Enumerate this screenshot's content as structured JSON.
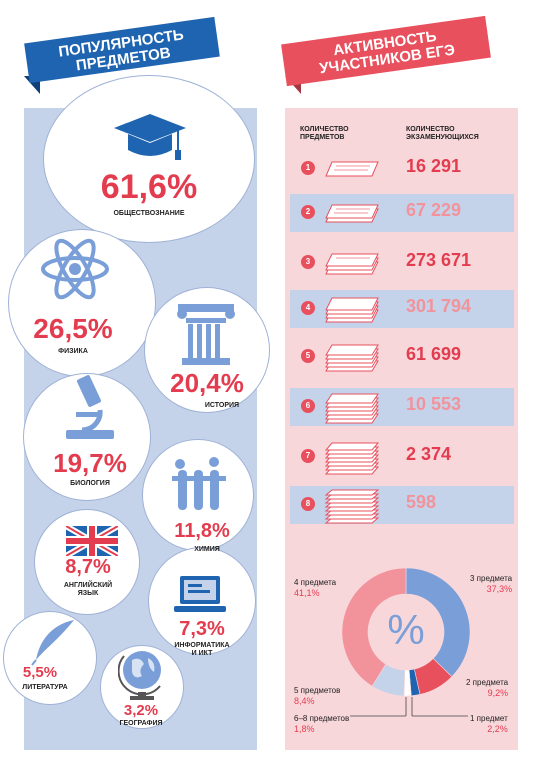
{
  "left_banner": {
    "line1": "ПОПУЛЯРНОСТЬ",
    "line2": "ПРЕДМЕТОВ"
  },
  "right_banner": {
    "line1": "АКТИВНОСТЬ",
    "line2": "УЧАСТНИКОВ ЕГЭ"
  },
  "subjects": [
    {
      "percent": "61,6%",
      "label": "ОБЩЕСТВОЗНАНИЕ",
      "icon": "graduation-cap-icon"
    },
    {
      "percent": "26,5%",
      "label": "ФИЗИКА",
      "icon": "atom-icon"
    },
    {
      "percent": "20,4%",
      "label": "ИСТОРИЯ",
      "icon": "column-icon"
    },
    {
      "percent": "19,7%",
      "label": "БИОЛОГИЯ",
      "icon": "microscope-icon"
    },
    {
      "percent": "11,8%",
      "label": "ХИМИЯ",
      "icon": "test-tubes-icon"
    },
    {
      "percent": "8,7%",
      "label_line1": "АНГЛИЙСКИЙ",
      "label_line2": "ЯЗЫК",
      "icon": "uk-flag-icon"
    },
    {
      "percent": "7,3%",
      "label_line1": "ИНФОРМАТИКА",
      "label_line2": "И ИКТ",
      "icon": "laptop-icon"
    },
    {
      "percent": "5,5%",
      "label": "ЛИТЕРАТУРА",
      "icon": "quill-icon"
    },
    {
      "percent": "3,2%",
      "label": "ГЕОГРАФИЯ",
      "icon": "globe-icon"
    }
  ],
  "table": {
    "col1_line1": "КОЛИЧЕСТВО",
    "col1_line2": "ПРЕДМЕТОВ",
    "col2_line1": "КОЛИЧЕСТВО",
    "col2_line2": "ЭКЗАМЕНУЮЩИХСЯ",
    "rows": [
      {
        "n": "1",
        "count": "16 291"
      },
      {
        "n": "2",
        "count": "67 229"
      },
      {
        "n": "3",
        "count": "273 671"
      },
      {
        "n": "4",
        "count": "301 794"
      },
      {
        "n": "5",
        "count": "61 699"
      },
      {
        "n": "6",
        "count": "10 553"
      },
      {
        "n": "7",
        "count": "2 374"
      },
      {
        "n": "8",
        "count": "598"
      }
    ]
  },
  "donut": {
    "center_symbol": "%",
    "segments": [
      {
        "label": "3 предмета",
        "value_text": "37,3%",
        "value": 37.3,
        "color": "#7a9fd8"
      },
      {
        "label": "2 предмета",
        "value_text": "9,2%",
        "value": 9.2,
        "color": "#e8505e"
      },
      {
        "label": "1 предмет",
        "value_text": "2,2%",
        "value": 2.2,
        "color": "#1e64b0"
      },
      {
        "label": "6–8 предметов",
        "value_text": "1,8%",
        "value": 1.8,
        "color": "#ffffff"
      },
      {
        "label": "5 предметов",
        "value_text": "8,4%",
        "value": 8.4,
        "color": "#c5d3ea"
      },
      {
        "label": "4 предмета",
        "value_text": "41,1%",
        "value": 41.1,
        "color": "#f2939c"
      }
    ]
  },
  "colors": {
    "blue": "#1e64b0",
    "red": "#e8505e",
    "light_blue": "#c5d3ea",
    "light_pink": "#f8d7db"
  }
}
